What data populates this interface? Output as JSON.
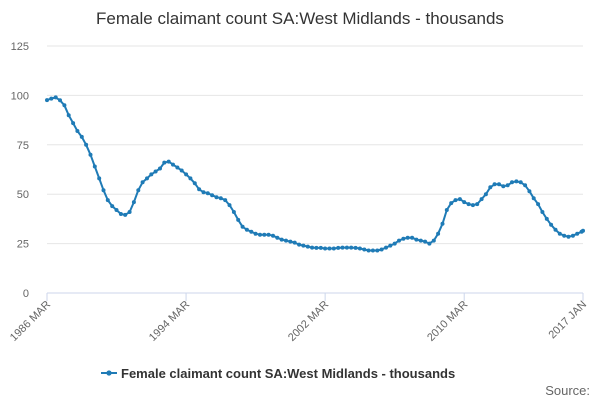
{
  "chart_data": {
    "type": "line",
    "title": "Female claimant count SA:West Midlands - thousands",
    "xlabel": "",
    "ylabel": "",
    "x_ticks": [
      "1986 MAR",
      "1994 MAR",
      "2002 MAR",
      "2010 MAR",
      "2017 JAN"
    ],
    "xlim": [
      "1986-03",
      "2017-01"
    ],
    "y_ticks": [
      0,
      25,
      50,
      75,
      100,
      125
    ],
    "ylim": [
      0,
      125
    ],
    "grid": true,
    "legend_position": "bottom",
    "source_label": "Source:",
    "series": [
      {
        "name": "Female claimant count SA:West Midlands - thousands",
        "color": "#1f7bb6",
        "points": [
          [
            "1986-03",
            97.6
          ],
          [
            "1986-06",
            98.4
          ],
          [
            "1986-09",
            99.0
          ],
          [
            "1986-12",
            97.5
          ],
          [
            "1987-03",
            95.0
          ],
          [
            "1987-06",
            90.0
          ],
          [
            "1987-09",
            86.0
          ],
          [
            "1987-12",
            82.0
          ],
          [
            "1988-03",
            79.0
          ],
          [
            "1988-06",
            75.0
          ],
          [
            "1988-09",
            70.0
          ],
          [
            "1988-12",
            64.0
          ],
          [
            "1989-03",
            58.0
          ],
          [
            "1989-06",
            52.0
          ],
          [
            "1989-09",
            47.0
          ],
          [
            "1989-12",
            44.0
          ],
          [
            "1990-03",
            42.0
          ],
          [
            "1990-06",
            40.0
          ],
          [
            "1990-09",
            39.5
          ],
          [
            "1990-12",
            41.0
          ],
          [
            "1991-03",
            46.0
          ],
          [
            "1991-06",
            52.0
          ],
          [
            "1991-09",
            56.0
          ],
          [
            "1991-12",
            58.0
          ],
          [
            "1992-03",
            60.0
          ],
          [
            "1992-06",
            61.5
          ],
          [
            "1992-09",
            63.0
          ],
          [
            "1992-12",
            66.0
          ],
          [
            "1993-03",
            66.5
          ],
          [
            "1993-06",
            65.0
          ],
          [
            "1993-09",
            63.5
          ],
          [
            "1993-12",
            62.0
          ],
          [
            "1994-03",
            60.0
          ],
          [
            "1994-06",
            58.0
          ],
          [
            "1994-09",
            55.5
          ],
          [
            "1994-12",
            52.5
          ],
          [
            "1995-03",
            51.0
          ],
          [
            "1995-06",
            50.5
          ],
          [
            "1995-09",
            49.5
          ],
          [
            "1995-12",
            48.5
          ],
          [
            "1996-03",
            48.0
          ],
          [
            "1996-06",
            47.0
          ],
          [
            "1996-09",
            44.5
          ],
          [
            "1996-12",
            41.0
          ],
          [
            "1997-03",
            37.0
          ],
          [
            "1997-06",
            33.5
          ],
          [
            "1997-09",
            32.0
          ],
          [
            "1997-12",
            31.0
          ],
          [
            "1998-03",
            30.0
          ],
          [
            "1998-06",
            29.5
          ],
          [
            "1998-09",
            29.5
          ],
          [
            "1998-12",
            29.5
          ],
          [
            "1999-03",
            29.0
          ],
          [
            "1999-06",
            28.0
          ],
          [
            "1999-09",
            27.0
          ],
          [
            "1999-12",
            26.5
          ],
          [
            "2000-03",
            26.0
          ],
          [
            "2000-06",
            25.5
          ],
          [
            "2000-09",
            24.5
          ],
          [
            "2000-12",
            24.0
          ],
          [
            "2001-03",
            23.5
          ],
          [
            "2001-06",
            23.0
          ],
          [
            "2001-09",
            22.8
          ],
          [
            "2001-12",
            22.8
          ],
          [
            "2002-03",
            22.5
          ],
          [
            "2002-06",
            22.5
          ],
          [
            "2002-09",
            22.5
          ],
          [
            "2002-12",
            22.8
          ],
          [
            "2003-03",
            23.0
          ],
          [
            "2003-06",
            23.0
          ],
          [
            "2003-09",
            23.0
          ],
          [
            "2003-12",
            22.8
          ],
          [
            "2004-03",
            22.5
          ],
          [
            "2004-06",
            22.0
          ],
          [
            "2004-09",
            21.5
          ],
          [
            "2004-12",
            21.5
          ],
          [
            "2005-03",
            21.5
          ],
          [
            "2005-06",
            22.0
          ],
          [
            "2005-09",
            23.0
          ],
          [
            "2005-12",
            24.0
          ],
          [
            "2006-03",
            25.0
          ],
          [
            "2006-06",
            26.5
          ],
          [
            "2006-09",
            27.5
          ],
          [
            "2006-12",
            28.0
          ],
          [
            "2007-03",
            28.0
          ],
          [
            "2007-06",
            27.0
          ],
          [
            "2007-09",
            26.5
          ],
          [
            "2007-12",
            26.0
          ],
          [
            "2008-03",
            25.0
          ],
          [
            "2008-06",
            26.5
          ],
          [
            "2008-09",
            30.0
          ],
          [
            "2008-12",
            35.0
          ],
          [
            "2009-03",
            42.0
          ],
          [
            "2009-06",
            45.5
          ],
          [
            "2009-09",
            47.0
          ],
          [
            "2009-12",
            47.5
          ],
          [
            "2010-03",
            46.0
          ],
          [
            "2010-06",
            45.0
          ],
          [
            "2010-09",
            44.5
          ],
          [
            "2010-12",
            45.0
          ],
          [
            "2011-03",
            47.5
          ],
          [
            "2011-06",
            50.0
          ],
          [
            "2011-09",
            53.5
          ],
          [
            "2011-12",
            55.0
          ],
          [
            "2012-03",
            55.0
          ],
          [
            "2012-06",
            54.0
          ],
          [
            "2012-09",
            54.5
          ],
          [
            "2012-12",
            56.0
          ],
          [
            "2013-03",
            56.5
          ],
          [
            "2013-06",
            56.0
          ],
          [
            "2013-09",
            54.5
          ],
          [
            "2013-12",
            51.5
          ],
          [
            "2014-03",
            48.0
          ],
          [
            "2014-06",
            45.0
          ],
          [
            "2014-09",
            41.0
          ],
          [
            "2014-12",
            37.5
          ],
          [
            "2015-03",
            34.5
          ],
          [
            "2015-06",
            32.0
          ],
          [
            "2015-09",
            30.0
          ],
          [
            "2015-12",
            29.0
          ],
          [
            "2016-03",
            28.5
          ],
          [
            "2016-06",
            29.0
          ],
          [
            "2016-09",
            30.0
          ],
          [
            "2016-12",
            31.0
          ],
          [
            "2017-01",
            31.5
          ]
        ]
      }
    ]
  }
}
